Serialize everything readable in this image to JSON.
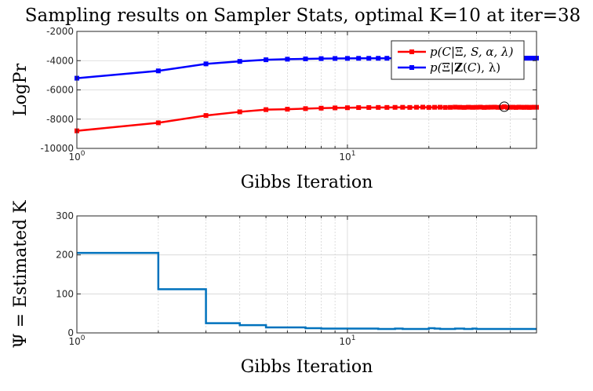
{
  "figure": {
    "title": "Sampling results on Sampler Stats, optimal K=10 at iter=38"
  },
  "chart_data": [
    {
      "type": "line",
      "xscale": "log",
      "xlim": [
        1,
        50
      ],
      "ylim": [
        -10000,
        -2000
      ],
      "xlabel": "Gibbs Iteration",
      "ylabel": "LogPr",
      "xticks": [
        1,
        10
      ],
      "xtick_labels": [
        {
          "base": "10",
          "exp": "0"
        },
        {
          "base": "10",
          "exp": "1"
        }
      ],
      "yticks": [
        -10000,
        -8000,
        -6000,
        -4000,
        -2000
      ],
      "ytick_labels": [
        "-10000",
        "-8000",
        "-6000",
        "-4000",
        "-2000"
      ],
      "grid": true,
      "legend_position": "top-right",
      "legend_labels": [
        "p(C|Ξ,S,α,λ)",
        "p(Ξ|Z(C),λ)"
      ],
      "marker": "square",
      "colors": [
        "#ff0000",
        "#0000ff"
      ],
      "x": [
        1,
        2,
        3,
        4,
        5,
        6,
        7,
        8,
        9,
        10,
        11,
        12,
        13,
        14,
        15,
        16,
        17,
        18,
        19,
        20,
        21,
        22,
        23,
        24,
        25,
        26,
        27,
        28,
        29,
        30,
        31,
        32,
        33,
        34,
        35,
        36,
        37,
        38,
        39,
        40,
        41,
        42,
        43,
        44,
        45,
        46,
        47,
        48,
        49,
        50
      ],
      "series": [
        {
          "values": [
            -8800,
            -8250,
            -7750,
            -7500,
            -7350,
            -7320,
            -7280,
            -7250,
            -7230,
            -7220,
            -7210,
            -7205,
            -7200,
            -7200,
            -7195,
            -7190,
            -7200,
            -7190,
            -7180,
            -7200,
            -7190,
            -7185,
            -7200,
            -7195,
            -7180,
            -7190,
            -7200,
            -7185,
            -7195,
            -7190,
            -7180,
            -7200,
            -7190,
            -7185,
            -7180,
            -7195,
            -7190,
            -7150,
            -7200,
            -7190,
            -7185,
            -7200,
            -7180,
            -7190,
            -7195,
            -7185,
            -7200,
            -7190,
            -7185,
            -7190
          ]
        },
        {
          "values": [
            -5200,
            -4700,
            -4220,
            -4050,
            -3940,
            -3900,
            -3880,
            -3860,
            -3850,
            -3845,
            -3840,
            -3840,
            -3838,
            -3836,
            -3835,
            -3835,
            -3834,
            -3833,
            -3832,
            -3832,
            -3832,
            -3831,
            -3831,
            -3830,
            -3830,
            -3830,
            -3830,
            -3830,
            -3830,
            -3830,
            -3830,
            -3830,
            -3830,
            -3830,
            -3830,
            -3830,
            -3830,
            -3830,
            -3830,
            -3830,
            -3830,
            -3830,
            -3830,
            -3830,
            -3830,
            -3830,
            -3830,
            -3830,
            -3830,
            -3830
          ]
        }
      ],
      "highlight": {
        "x": 38,
        "y": -7150
      }
    },
    {
      "type": "line",
      "step": true,
      "xscale": "log",
      "xlim": [
        1,
        50
      ],
      "ylim": [
        0,
        300
      ],
      "xlabel": "Gibbs Iteration",
      "ylabel": "Ψ = Estimated K",
      "xticks": [
        1,
        10
      ],
      "xtick_labels": [
        {
          "base": "10",
          "exp": "0"
        },
        {
          "base": "10",
          "exp": "1"
        }
      ],
      "yticks": [
        0,
        100,
        200,
        300
      ],
      "ytick_labels": [
        "0",
        "100",
        "200",
        "300"
      ],
      "grid": true,
      "colors": [
        "#0072bd"
      ],
      "x": [
        1,
        2,
        3,
        4,
        5,
        6,
        7,
        8,
        9,
        10,
        11,
        12,
        13,
        14,
        15,
        16,
        17,
        18,
        19,
        20,
        21,
        22,
        23,
        24,
        25,
        26,
        27,
        28,
        29,
        30,
        31,
        32,
        33,
        34,
        35,
        36,
        37,
        38,
        39,
        40,
        41,
        42,
        43,
        44,
        45,
        46,
        47,
        48,
        49,
        50
      ],
      "series": [
        {
          "values": [
            205,
            112,
            25,
            20,
            14,
            14,
            12,
            11,
            11,
            11,
            11,
            11,
            10,
            10,
            11,
            10,
            10,
            10,
            10,
            12,
            11,
            10,
            10,
            10,
            11,
            11,
            10,
            10,
            11,
            10,
            10,
            10,
            10,
            10,
            10,
            10,
            10,
            10,
            10,
            10,
            10,
            10,
            10,
            10,
            10,
            10,
            10,
            10,
            10,
            10
          ]
        }
      ]
    }
  ]
}
